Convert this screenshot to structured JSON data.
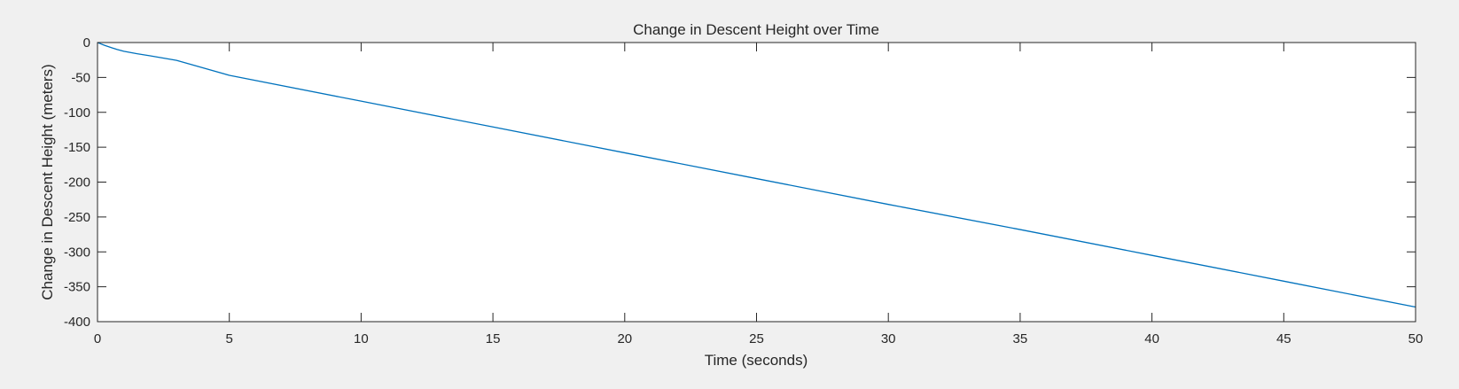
{
  "chart_data": {
    "type": "line",
    "title": "Change in Descent Height over Time",
    "xlabel": "Time (seconds)",
    "ylabel": "Change in Descent Height (meters)",
    "xlim": [
      0,
      50
    ],
    "ylim": [
      -400,
      0
    ],
    "xticks": [
      0,
      5,
      10,
      15,
      20,
      25,
      30,
      35,
      40,
      45,
      50
    ],
    "yticks": [
      0,
      -50,
      -100,
      -150,
      -200,
      -250,
      -300,
      -350,
      -400
    ],
    "grid": false,
    "legend": "none",
    "series": [
      {
        "color": "#0072bd",
        "x": [
          0,
          0.1,
          0.2,
          0.3,
          0.5,
          0.75,
          1,
          1.5,
          2,
          3,
          5,
          10,
          15,
          20,
          25,
          30,
          35,
          40,
          45,
          50
        ],
        "y": [
          0,
          -1.5,
          -3,
          -4.5,
          -7,
          -10,
          -12.5,
          -16,
          -19,
          -25.5,
          -47,
          -84,
          -121,
          -158,
          -195,
          -232,
          -268,
          -305,
          -342,
          -379
        ]
      }
    ]
  }
}
